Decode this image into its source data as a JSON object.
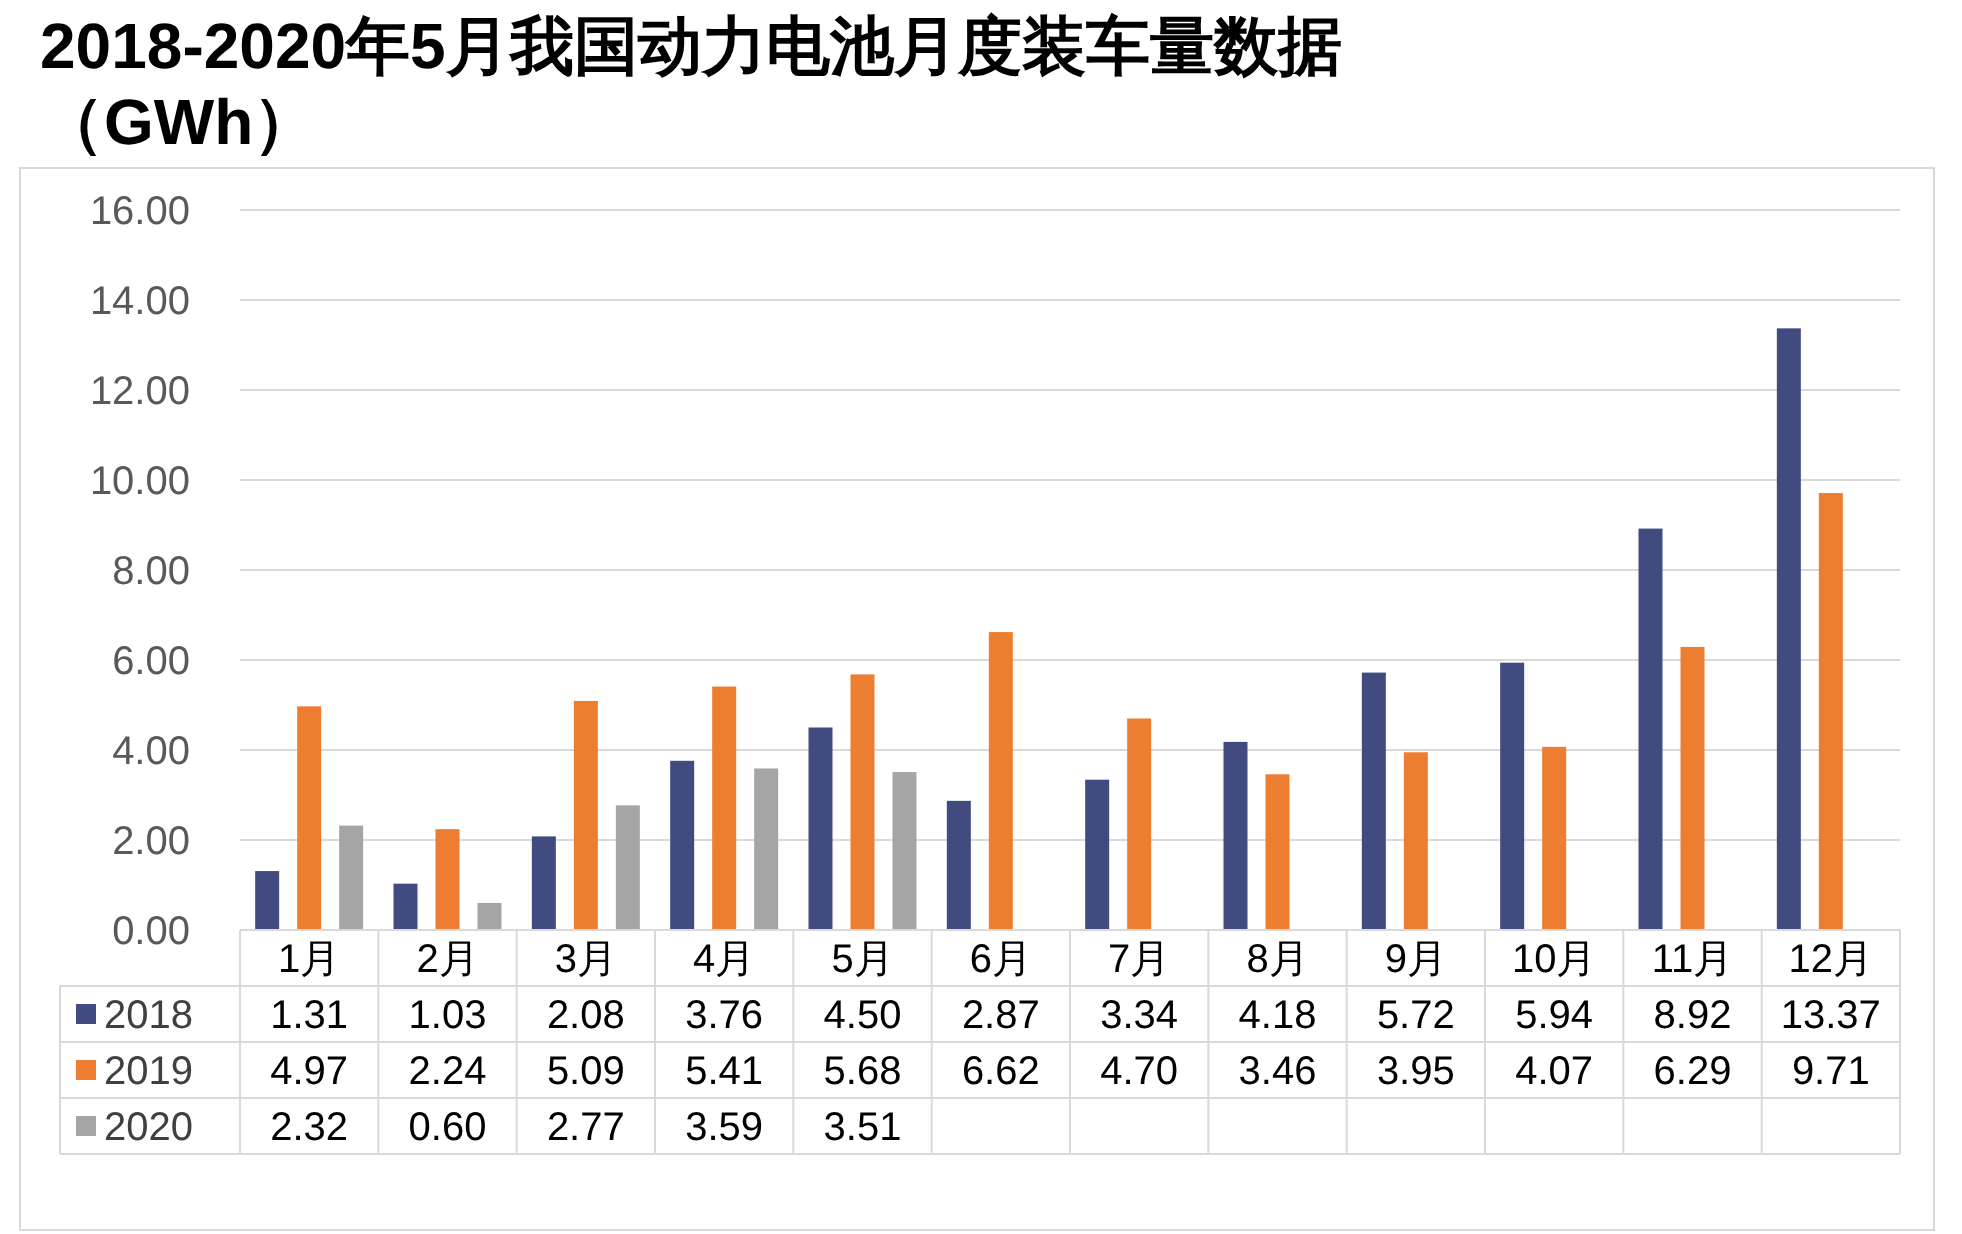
{
  "chart_data": {
    "type": "bar",
    "title": "2018-2020年5月我国动力电池月度装车量数据（GWh）",
    "categories": [
      "1月",
      "2月",
      "3月",
      "4月",
      "5月",
      "6月",
      "7月",
      "8月",
      "9月",
      "10月",
      "11月",
      "12月"
    ],
    "series": [
      {
        "name": "2018",
        "color": "#414b80",
        "values": [
          1.31,
          1.03,
          2.08,
          3.76,
          4.5,
          2.87,
          3.34,
          4.18,
          5.72,
          5.94,
          8.92,
          13.37
        ],
        "value_labels": [
          "1.31",
          "1.03",
          "2.08",
          "3.76",
          "4.50",
          "2.87",
          "3.34",
          "4.18",
          "5.72",
          "5.94",
          "8.92",
          "13.37"
        ]
      },
      {
        "name": "2019",
        "color": "#ed7d31",
        "values": [
          4.97,
          2.24,
          5.09,
          5.41,
          5.68,
          6.62,
          4.7,
          3.46,
          3.95,
          4.07,
          6.29,
          9.71
        ],
        "value_labels": [
          "4.97",
          "2.24",
          "5.09",
          "5.41",
          "5.68",
          "6.62",
          "4.70",
          "3.46",
          "3.95",
          "4.07",
          "6.29",
          "9.71"
        ]
      },
      {
        "name": "2020",
        "color": "#a5a5a5",
        "values": [
          2.32,
          0.6,
          2.77,
          3.59,
          3.51,
          null,
          null,
          null,
          null,
          null,
          null,
          null
        ],
        "value_labels": [
          "2.32",
          "0.60",
          "2.77",
          "3.59",
          "3.51",
          null,
          null,
          null,
          null,
          null,
          null,
          null
        ]
      }
    ],
    "ylim": [
      0,
      16
    ],
    "yticks": [
      {
        "value": 0,
        "label": "0.00"
      },
      {
        "value": 2,
        "label": "2.00"
      },
      {
        "value": 4,
        "label": "4.00"
      },
      {
        "value": 6,
        "label": "6.00"
      },
      {
        "value": 8,
        "label": "8.00"
      },
      {
        "value": 10,
        "label": "10.00"
      },
      {
        "value": 12,
        "label": "12.00"
      },
      {
        "value": 14,
        "label": "14.00"
      },
      {
        "value": 16,
        "label": "16.00"
      }
    ],
    "grid": "y",
    "legend": "bottom left"
  }
}
